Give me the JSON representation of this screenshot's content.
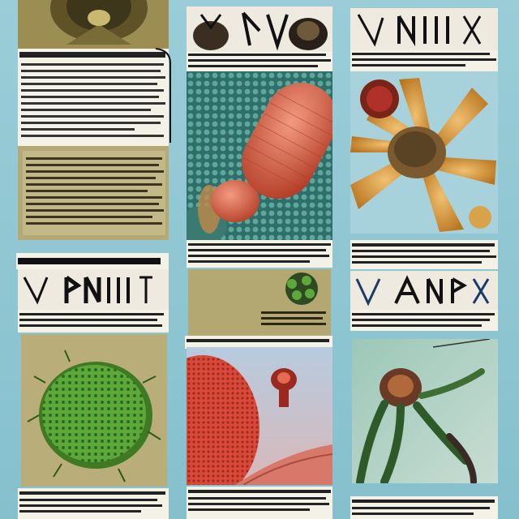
{
  "image": {
    "description_kind": "collage",
    "palette": {
      "background": "#8fc7d3",
      "paper": "#f4f1e6",
      "olive": "#aa9f6a",
      "ink": "#1a1a1a",
      "cell_red": "#d8664a",
      "cell_green": "#5da83a",
      "amber": "#d89a3a",
      "teal": "#3b8c86"
    },
    "caption_headline_left": "",
    "caption_headline_center": "",
    "caption_headline_right": ""
  }
}
